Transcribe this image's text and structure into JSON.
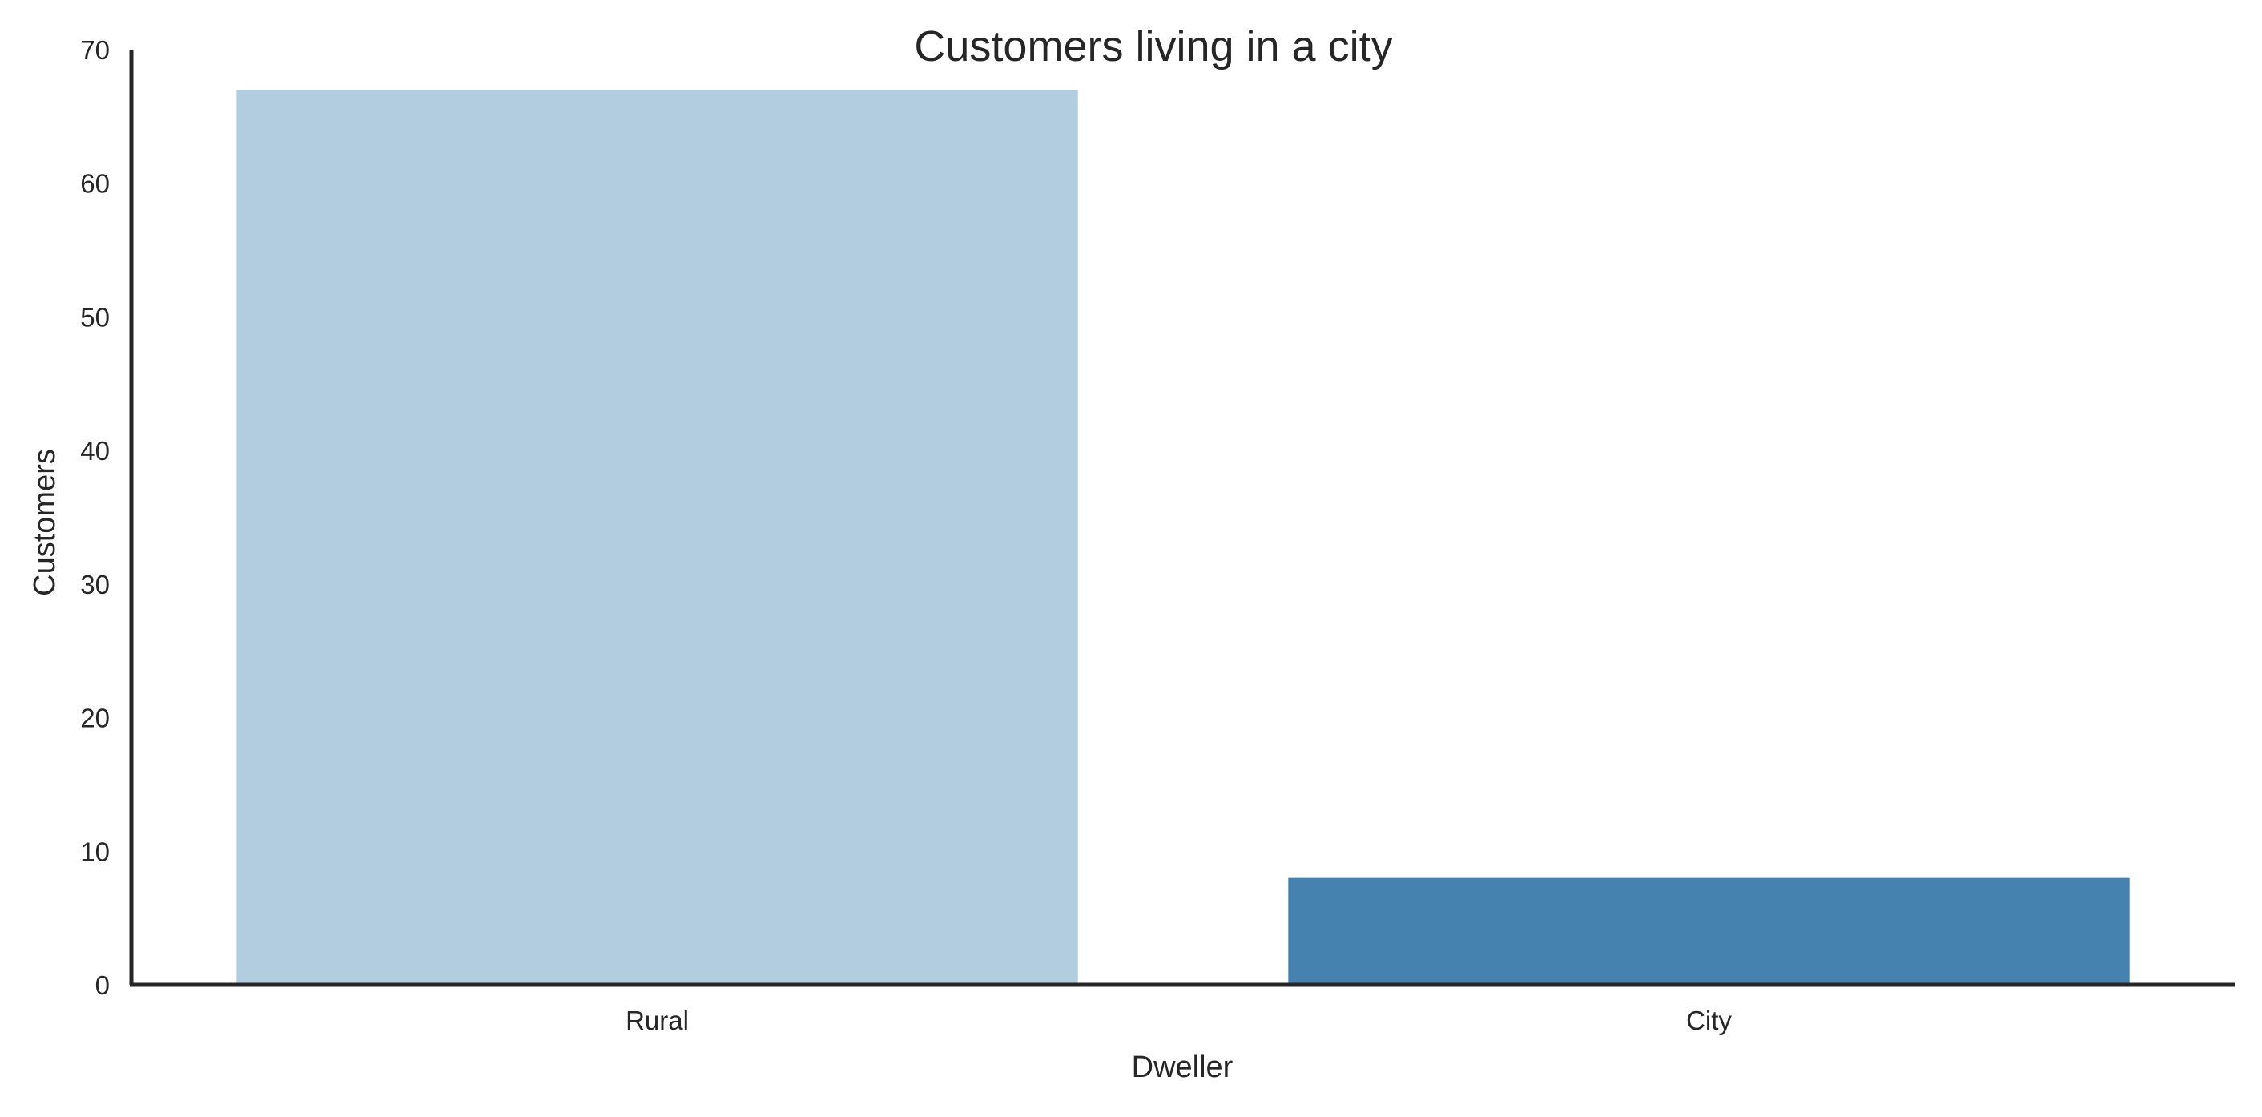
{
  "chart_data": {
    "type": "bar",
    "title": "Customers living in a city",
    "xlabel": "Dweller",
    "ylabel": "Customers",
    "categories": [
      "Rural",
      "City"
    ],
    "values": [
      67,
      8
    ],
    "ylim": [
      0,
      70
    ],
    "yticks": [
      0,
      10,
      20,
      30,
      40,
      50,
      60,
      70
    ],
    "grid": false,
    "legend": "none",
    "colors": [
      "#b3cde0",
      "#4682b0"
    ],
    "axis_color": "#262626"
  }
}
